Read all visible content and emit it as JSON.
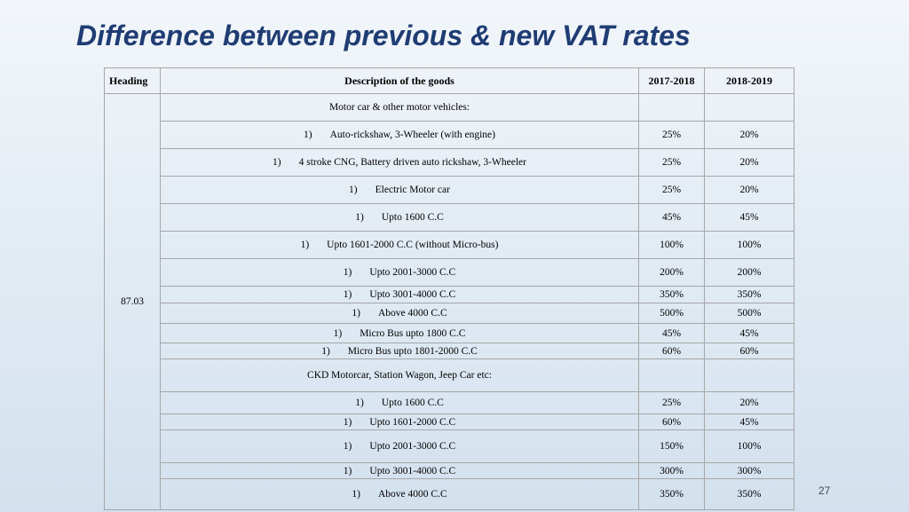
{
  "title": "Difference between previous & new VAT rates",
  "table": {
    "columns": [
      "Heading",
      "Description of the goods",
      "2017-2018",
      "2018-2019"
    ],
    "heading_code": "87.03",
    "rows": [
      {
        "num": "",
        "desc": "Motor car & other motor vehicles:",
        "prev": "",
        "new": ""
      },
      {
        "num": "1)",
        "desc": "Auto-rickshaw, 3-Wheeler (with engine)",
        "prev": "25%",
        "new": "20%"
      },
      {
        "num": "1)",
        "desc": "4 stroke CNG, Battery driven auto rickshaw, 3-Wheeler",
        "prev": "25%",
        "new": "20%"
      },
      {
        "num": "1)",
        "desc": "Electric Motor car",
        "prev": "25%",
        "new": "20%"
      },
      {
        "num": "1)",
        "desc": "Upto 1600 C.C",
        "prev": "45%",
        "new": "45%"
      },
      {
        "num": "1)",
        "desc": "Upto 1601-2000 C.C (without Micro-bus)",
        "prev": "100%",
        "new": "100%"
      },
      {
        "num": "1)",
        "desc": "Upto 2001-3000 C.C",
        "prev": "200%",
        "new": "200%"
      },
      {
        "num": "1)",
        "desc": "Upto 3001-4000 C.C",
        "prev": "350%",
        "new": "350%"
      },
      {
        "num": "1)",
        "desc": "Above 4000 C.C",
        "prev": "500%",
        "new": "500%"
      },
      {
        "num": "1)",
        "desc": "Micro Bus upto 1800 C.C",
        "prev": "45%",
        "new": "45%"
      },
      {
        "num": "1)",
        "desc": "Micro Bus upto 1801-2000 C.C",
        "prev": "60%",
        "new": "60%"
      },
      {
        "num": "",
        "desc": "CKD Motorcar, Station Wagon, Jeep Car etc:",
        "prev": "",
        "new": ""
      },
      {
        "num": "1)",
        "desc": "Upto 1600 C.C",
        "prev": "25%",
        "new": "20%"
      },
      {
        "num": "1)",
        "desc": "Upto 1601-2000 C.C",
        "prev": "60%",
        "new": "45%"
      },
      {
        "num": "1)",
        "desc": "Upto 2001-3000 C.C",
        "prev": "150%",
        "new": "100%"
      },
      {
        "num": "1)",
        "desc": "Upto 3001-4000 C.C",
        "prev": "300%",
        "new": "300%"
      },
      {
        "num": "1)",
        "desc": "Above 4000 C.C",
        "prev": "350%",
        "new": "350%"
      }
    ]
  },
  "page_number": "27"
}
